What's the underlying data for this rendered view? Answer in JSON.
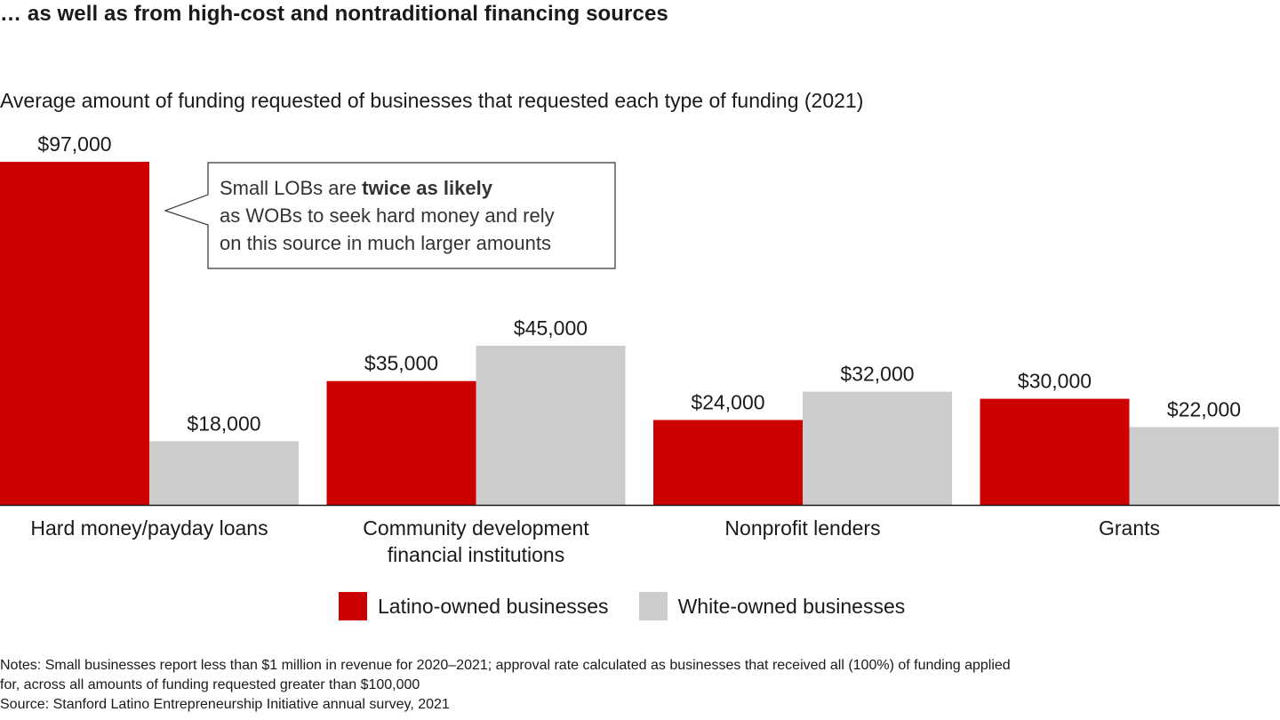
{
  "title": "… as well as from high-cost and nontraditional financing sources",
  "subtitle": "Average amount of funding requested of businesses that requested each type of funding (2021)",
  "callout": {
    "prefix": "Small LOBs are ",
    "bold": "twice as likely",
    "line2": "as WOBs to seek hard money and rely",
    "line3": "on this source in much larger amounts"
  },
  "notes": {
    "line1": "Notes: Small businesses report less than $1 million in revenue for 2020–2021; approval rate calculated as businesses that received all (100%) of funding applied",
    "line2": "for, across all amounts of funding requested greater than $100,000",
    "source": "Source: Stanford Latino Entrepreneurship Initiative annual survey, 2021"
  },
  "chart_data": {
    "type": "bar",
    "categories": [
      [
        "Hard money/payday loans"
      ],
      [
        "Community development",
        "financial institutions"
      ],
      [
        "Nonprofit lenders"
      ],
      [
        "Grants"
      ]
    ],
    "series": [
      {
        "name": "Latino-owned businesses",
        "color": "#cc0000",
        "values": [
          97000,
          35000,
          24000,
          30000
        ],
        "labels": [
          "$97,000",
          "$35,000",
          "$24,000",
          "$30,000"
        ]
      },
      {
        "name": "White-owned businesses",
        "color": "#cccccc",
        "values": [
          18000,
          45000,
          32000,
          22000
        ],
        "labels": [
          "$18,000",
          "$45,000",
          "$32,000",
          "$22,000"
        ]
      }
    ],
    "ylim": [
      0,
      97000
    ],
    "grid": false,
    "legend_position": "bottom"
  }
}
